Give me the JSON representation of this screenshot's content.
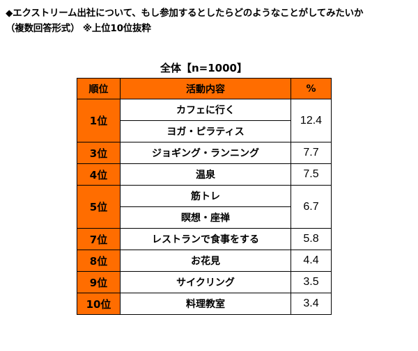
{
  "title": {
    "line1": "◆エクストリーム出社について、もし参加するとしたらどのようなことがしてみたいか",
    "line2": "（複数回答形式） ※上位10位抜粋"
  },
  "table_title": "全体【n=1000】",
  "headers": {
    "rank": "順位",
    "activity": "活動内容",
    "percent": "%"
  },
  "rows": [
    {
      "rank": "1位",
      "activities": [
        "カフェに行く",
        "ヨガ・ピラティス"
      ],
      "percent": "12.4"
    },
    {
      "rank": "3位",
      "activities": [
        "ジョギング・ランニング"
      ],
      "percent": "7.7"
    },
    {
      "rank": "4位",
      "activities": [
        "温泉"
      ],
      "percent": "7.5"
    },
    {
      "rank": "5位",
      "activities": [
        "筋トレ",
        "瞑想・座禅"
      ],
      "percent": "6.7"
    },
    {
      "rank": "7位",
      "activities": [
        "レストランで食事をする"
      ],
      "percent": "5.8"
    },
    {
      "rank": "8位",
      "activities": [
        "お花見"
      ],
      "percent": "4.4"
    },
    {
      "rank": "9位",
      "activities": [
        "サイクリング"
      ],
      "percent": "3.5"
    },
    {
      "rank": "10位",
      "activities": [
        "料理教室"
      ],
      "percent": "3.4"
    }
  ],
  "colors": {
    "header_fill": "#ff6d00",
    "rank_fill": "#ff6d00",
    "border": "#000000"
  }
}
